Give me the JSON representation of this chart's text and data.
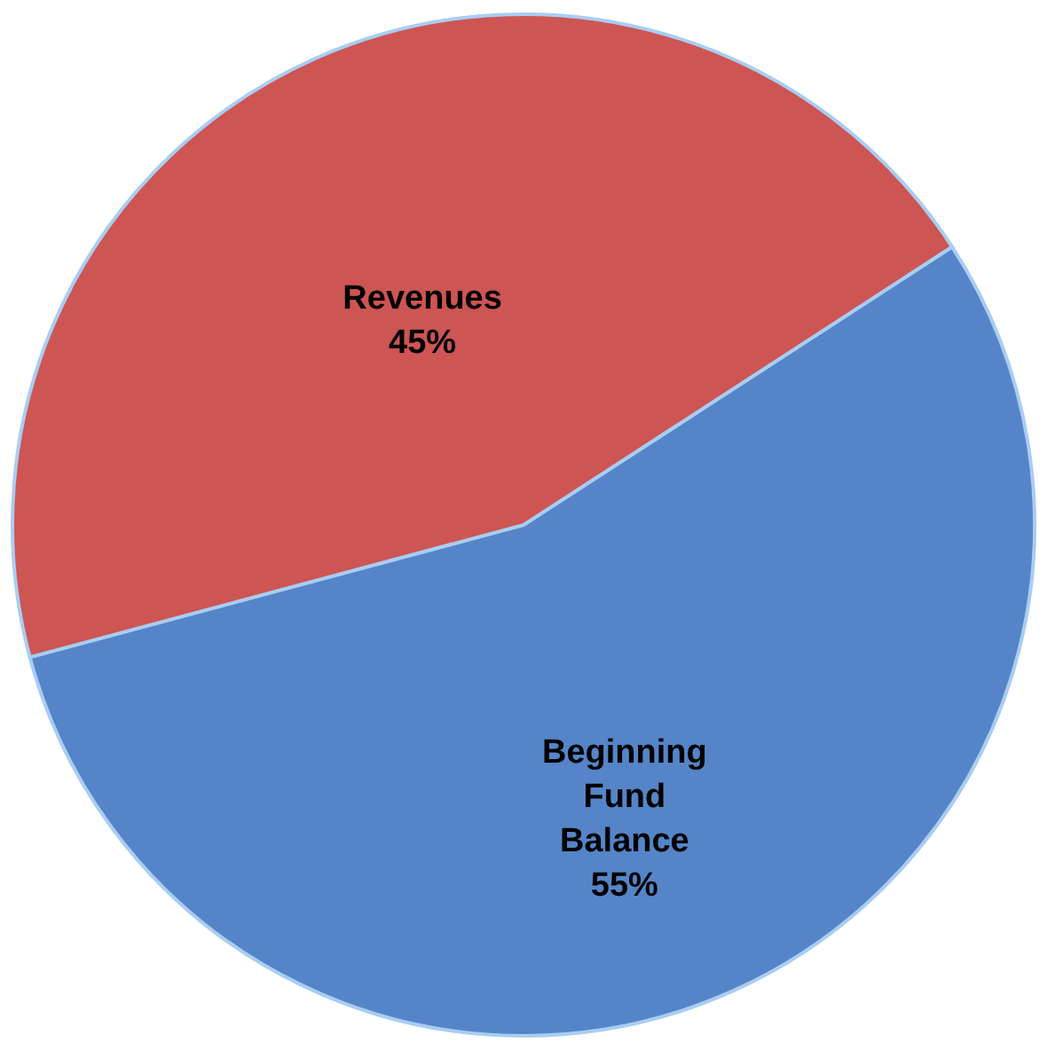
{
  "chart_data": {
    "type": "pie",
    "categories": [
      "Beginning Fund Balance",
      "Revenues"
    ],
    "values": [
      55,
      45
    ],
    "colors": [
      "#5585c8",
      "#cd5553"
    ],
    "value_labels": [
      "55%",
      "45%"
    ]
  }
}
